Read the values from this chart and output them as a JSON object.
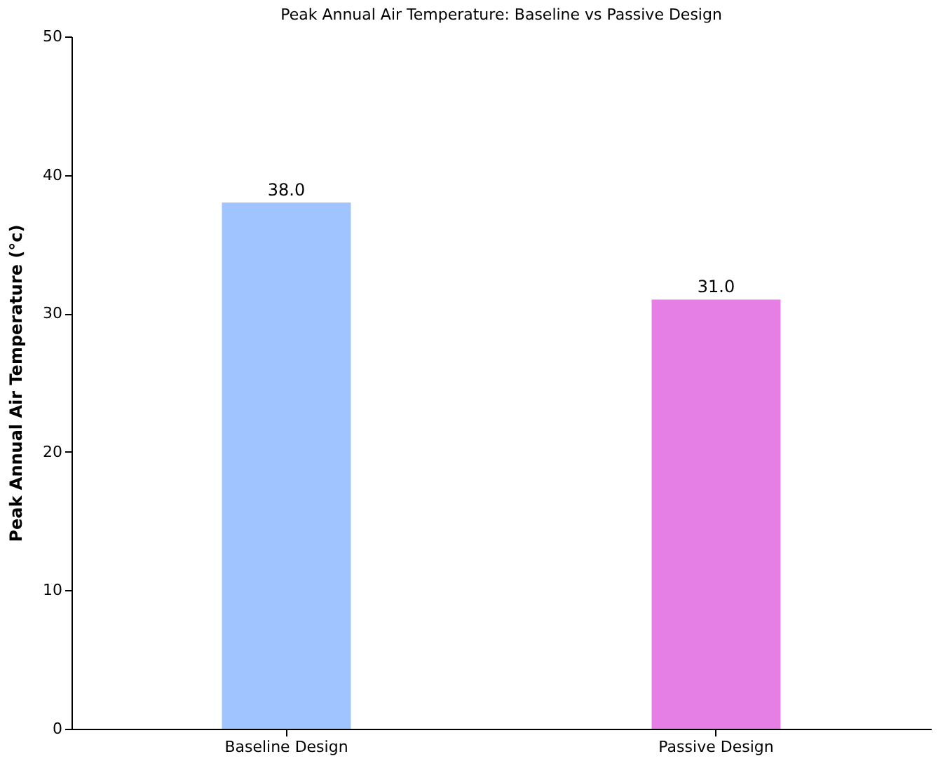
{
  "chart_data": {
    "type": "bar",
    "title": "Peak Annual Air Temperature: Baseline vs Passive Design",
    "ylabel": "Peak Annual Air Temperature (°c)",
    "categories": [
      "Baseline Design",
      "Passive Design"
    ],
    "values": [
      38.0,
      31.0
    ],
    "colors": [
      "#a0c4ff",
      "#e57fe6"
    ],
    "value_labels": [
      "38.0",
      "31.0"
    ],
    "ylim": [
      0,
      50
    ],
    "yticks": [
      0,
      10,
      20,
      30,
      40,
      50
    ],
    "grid": false
  }
}
